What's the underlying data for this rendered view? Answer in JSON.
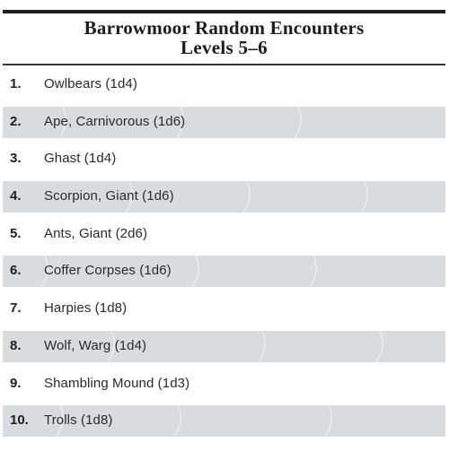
{
  "title": {
    "line1": "Barrowmoor Random Encounters",
    "line2": "Levels 5–6"
  },
  "rows": [
    {
      "num": "1.",
      "entry": "Owlbears (1d4)",
      "shaded": false
    },
    {
      "num": "2.",
      "entry": "Ape, Carnivorous (1d6)",
      "shaded": true
    },
    {
      "num": "3.",
      "entry": "Ghast (1d4)",
      "shaded": false
    },
    {
      "num": "4.",
      "entry": "Scorpion, Giant (1d6)",
      "shaded": true
    },
    {
      "num": "5.",
      "entry": "Ants, Giant (2d6)",
      "shaded": false
    },
    {
      "num": "6.",
      "entry": "Coffer Corpses (1d6)",
      "shaded": true
    },
    {
      "num": "7.",
      "entry": "Harpies (1d8)",
      "shaded": false
    },
    {
      "num": "8.",
      "entry": "Wolf, Warg (1d4)",
      "shaded": true
    },
    {
      "num": "9.",
      "entry": "Shambling Mound (1d3)",
      "shaded": false
    },
    {
      "num": "10.",
      "entry": "Trolls (1d8)",
      "shaded": true
    }
  ],
  "colors": {
    "band": "#d9dcde",
    "text": "#2a2a2a",
    "rule": "#1f1f1f"
  }
}
